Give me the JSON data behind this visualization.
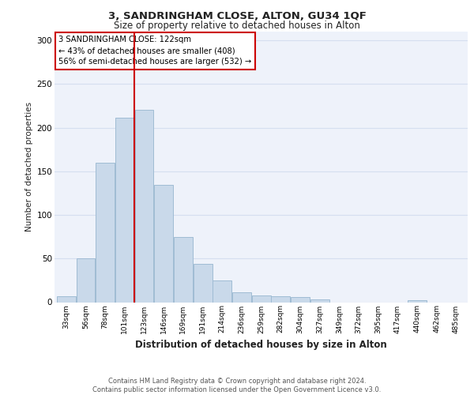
{
  "title1": "3, SANDRINGHAM CLOSE, ALTON, GU34 1QF",
  "title2": "Size of property relative to detached houses in Alton",
  "xlabel": "Distribution of detached houses by size in Alton",
  "ylabel": "Number of detached properties",
  "footer1": "Contains HM Land Registry data © Crown copyright and database right 2024.",
  "footer2": "Contains public sector information licensed under the Open Government Licence v3.0.",
  "bin_labels": [
    "33sqm",
    "56sqm",
    "78sqm",
    "101sqm",
    "123sqm",
    "146sqm",
    "169sqm",
    "191sqm",
    "214sqm",
    "236sqm",
    "259sqm",
    "282sqm",
    "304sqm",
    "327sqm",
    "349sqm",
    "372sqm",
    "395sqm",
    "417sqm",
    "440sqm",
    "462sqm",
    "485sqm"
  ],
  "bar_values": [
    7,
    50,
    160,
    211,
    220,
    134,
    75,
    44,
    25,
    11,
    8,
    7,
    6,
    3,
    0,
    0,
    0,
    0,
    2,
    0,
    0
  ],
  "bar_color": "#c9d9ea",
  "bar_edge_color": "#a0bcd4",
  "grid_color": "#d5dff0",
  "bg_color": "#eef2fa",
  "property_line_color": "#cc0000",
  "annotation_text": "3 SANDRINGHAM CLOSE: 122sqm\n← 43% of detached houses are smaller (408)\n56% of semi-detached houses are larger (532) →",
  "annotation_box_color": "#ffffff",
  "annotation_box_edge": "#cc0000",
  "ylim": [
    0,
    310
  ],
  "red_line_bar_index": 4
}
